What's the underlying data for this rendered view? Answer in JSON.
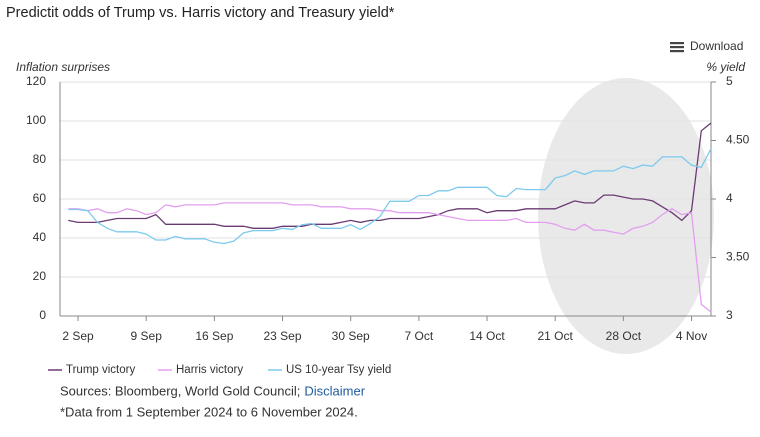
{
  "chart_data": {
    "type": "line",
    "title": "Predictit odds of Trump vs. Harris victory and Treasury yield*",
    "y_label": "Inflation surprises",
    "y2_label": "% yield",
    "categories": [
      null,
      "2 Sep",
      null,
      null,
      null,
      null,
      null,
      null,
      "9 Sep",
      null,
      null,
      null,
      null,
      null,
      null,
      "16 Sep",
      null,
      null,
      null,
      null,
      null,
      null,
      "23 Sep",
      null,
      null,
      null,
      null,
      null,
      null,
      "30 Sep",
      null,
      null,
      null,
      null,
      null,
      null,
      "7 Oct",
      null,
      null,
      null,
      null,
      null,
      null,
      "14 Oct",
      null,
      null,
      null,
      null,
      null,
      null,
      "21 Oct",
      null,
      null,
      null,
      null,
      null,
      null,
      "28 Oct",
      null,
      null,
      null,
      null,
      null,
      null,
      "4 Nov",
      null,
      null
    ],
    "series": [
      {
        "name": "Trump victory",
        "color": "#6b3a73",
        "values": [
          49,
          48,
          48,
          48,
          49,
          50,
          50,
          50,
          50,
          52,
          47,
          47,
          47,
          47,
          47,
          47,
          46,
          46,
          46,
          45,
          45,
          45,
          46,
          46,
          46,
          47,
          47,
          47,
          48,
          49,
          48,
          49,
          49,
          50,
          50,
          50,
          50,
          51,
          52,
          54,
          55,
          55,
          55,
          53,
          54,
          54,
          54,
          55,
          55,
          55,
          55,
          57,
          59,
          58,
          58,
          62,
          62,
          61,
          60,
          60,
          59,
          56,
          53,
          49,
          54,
          95,
          99
        ]
      },
      {
        "name": "Harris victory",
        "color": "#e39fef",
        "values": [
          55,
          55,
          54,
          55,
          53,
          53,
          55,
          54,
          52,
          53,
          57,
          56,
          57,
          57,
          57,
          57,
          58,
          58,
          58,
          58,
          58,
          58,
          58,
          57,
          57,
          57,
          56,
          56,
          56,
          55,
          55,
          55,
          54,
          54,
          53,
          53,
          53,
          53,
          52,
          51,
          50,
          49,
          49,
          49,
          49,
          49,
          50,
          48,
          48,
          48,
          47,
          45,
          44,
          47,
          44,
          44,
          43,
          42,
          45,
          46,
          48,
          52,
          55,
          52,
          53,
          6,
          2
        ]
      },
      {
        "name": "US 10-year Tsy yield",
        "color": "#7ccaee",
        "axis": "y2",
        "values": [
          3.91,
          3.91,
          3.9,
          3.8,
          3.75,
          3.72,
          3.72,
          3.72,
          3.7,
          3.65,
          3.65,
          3.68,
          3.66,
          3.66,
          3.66,
          3.63,
          3.62,
          3.64,
          3.71,
          3.73,
          3.73,
          3.73,
          3.75,
          3.74,
          3.78,
          3.79,
          3.75,
          3.75,
          3.75,
          3.78,
          3.74,
          3.79,
          3.85,
          3.98,
          3.98,
          3.98,
          4.03,
          4.03,
          4.07,
          4.07,
          4.1,
          4.1,
          4.1,
          4.1,
          4.03,
          4.02,
          4.09,
          4.08,
          4.08,
          4.08,
          4.18,
          4.2,
          4.24,
          4.21,
          4.24,
          4.24,
          4.24,
          4.28,
          4.26,
          4.29,
          4.28,
          4.36,
          4.36,
          4.36,
          4.29,
          4.27,
          4.43
        ]
      }
    ],
    "ylim": [
      0,
      120
    ],
    "yticks": [
      0,
      20,
      40,
      60,
      80,
      100,
      120
    ],
    "y2lim": [
      3,
      5
    ],
    "y2ticks": [
      3,
      {
        "value": 3.5,
        "label": "3.50"
      },
      4,
      {
        "value": 4.5,
        "label": "4.50"
      },
      5
    ],
    "grid": true
  },
  "download": "Download",
  "sources": "Sources: Bloomberg, World Gold Council;",
  "disclaimer": "Disclaimer",
  "footnote": "*Data from 1 September 2024 to 6 November 2024."
}
